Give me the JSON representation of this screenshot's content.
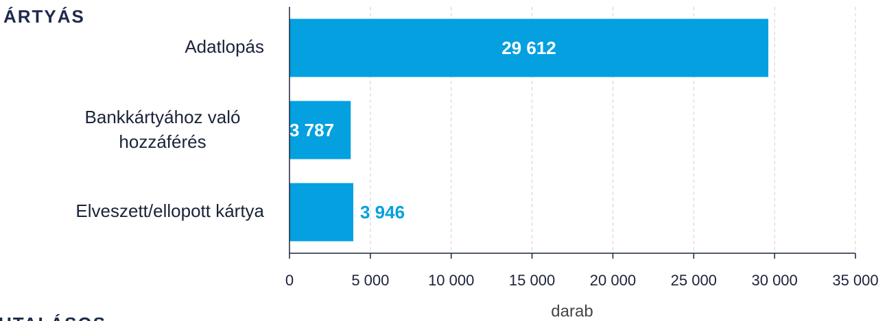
{
  "chart_data": {
    "type": "bar",
    "orientation": "horizontal",
    "title": "ÁRTYÁS",
    "subtitle": "UTALÁSOS",
    "categories": [
      "Adatlopás",
      "Bankkártyához való hozzáférés",
      "Elveszett/ellopott kártya"
    ],
    "values": [
      29612,
      3787,
      3946
    ],
    "value_labels": [
      "29 612",
      "3 787",
      "3 946"
    ],
    "value_label_positions": [
      "inside",
      "inside",
      "outside"
    ],
    "color": "#04a0e0",
    "xlabel": "darab",
    "xlim": [
      0,
      35000
    ],
    "xticks": [
      0,
      {
        "value": 5000,
        "label": "5 000"
      },
      {
        "value": 10000,
        "label": "10 000"
      },
      {
        "value": 15000,
        "label": "15 000"
      },
      {
        "value": 20000,
        "label": "20 000"
      },
      {
        "value": 25000,
        "label": "25 000"
      },
      {
        "value": 30000,
        "label": "30 000"
      },
      {
        "value": 35000,
        "label": "35 000"
      }
    ],
    "grid": true
  }
}
